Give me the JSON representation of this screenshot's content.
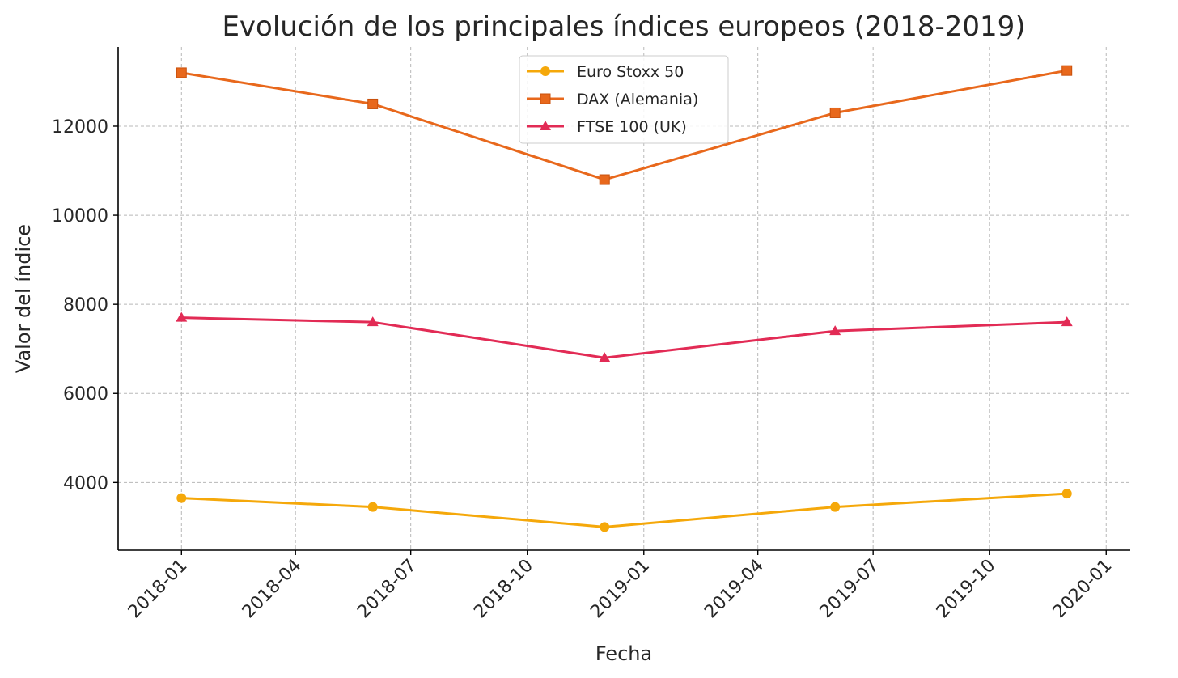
{
  "chart_data": {
    "type": "line",
    "title": "Evolución de los principales índices europeos (2018-2019)",
    "xlabel": "Fecha",
    "ylabel": "Valor del índice",
    "grid": true,
    "legend_position": "top-center",
    "x_range": [
      "2017-11-12",
      "2020-01-20"
    ],
    "ylim": [
      2480,
      13780
    ],
    "x_ticks": [
      "2018-01",
      "2018-04",
      "2018-07",
      "2018-10",
      "2019-01",
      "2019-04",
      "2019-07",
      "2019-10",
      "2020-01"
    ],
    "x_tick_dates": [
      "2018-01-01",
      "2018-04-01",
      "2018-07-01",
      "2018-10-01",
      "2019-01-01",
      "2019-04-01",
      "2019-07-01",
      "2019-10-01",
      "2020-01-01"
    ],
    "y_ticks": [
      4000,
      6000,
      8000,
      10000,
      12000
    ],
    "x": [
      "2018-01-01",
      "2018-06-01",
      "2018-12-01",
      "2019-06-01",
      "2019-12-01"
    ],
    "series": [
      {
        "name": "Euro Stoxx 50",
        "marker": "circle",
        "color": "#f5a80a",
        "values": [
          3650,
          3450,
          3000,
          3450,
          3750
        ]
      },
      {
        "name": "DAX (Alemania)",
        "marker": "square",
        "color": "#e8681c",
        "values": [
          13200,
          12500,
          10800,
          12300,
          13250
        ]
      },
      {
        "name": "FTSE 100 (UK)",
        "marker": "triangle",
        "color": "#e22b55",
        "values": [
          7700,
          7600,
          6800,
          7400,
          7600
        ]
      }
    ]
  }
}
